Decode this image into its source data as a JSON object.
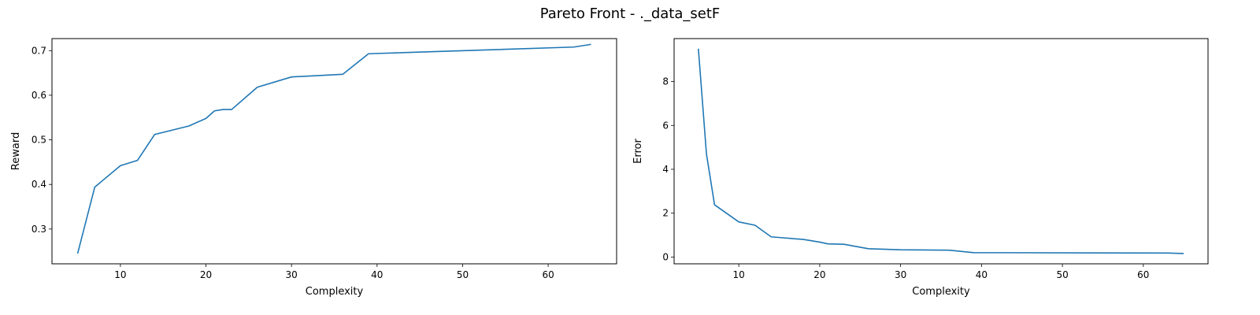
{
  "figure": {
    "title": "Pareto Front - ._data_setF"
  },
  "chart_data": [
    {
      "type": "line",
      "xlabel": "Complexity",
      "ylabel": "Reward",
      "xlim": [
        2,
        68
      ],
      "ylim": [
        0.222,
        0.727
      ],
      "xticks": [
        10,
        20,
        30,
        40,
        50,
        60
      ],
      "yticks": [
        0.3,
        0.4,
        0.5,
        0.6,
        0.7
      ],
      "ytick_labels": [
        "0.3",
        "0.4",
        "0.5",
        "0.6",
        "0.7"
      ],
      "grid": false,
      "color": "#1f77b4",
      "series": [
        {
          "x": [
            5,
            7,
            10,
            12,
            14,
            18,
            20,
            21,
            22,
            23,
            26,
            30,
            36,
            39,
            63,
            65
          ],
          "values": [
            0.245,
            0.394,
            0.442,
            0.454,
            0.512,
            0.531,
            0.548,
            0.565,
            0.568,
            0.568,
            0.618,
            0.641,
            0.647,
            0.693,
            0.708,
            0.714
          ]
        }
      ]
    },
    {
      "type": "line",
      "xlabel": "Complexity",
      "ylabel": "Error",
      "xlim": [
        2,
        68
      ],
      "ylim": [
        -0.31,
        9.96
      ],
      "xticks": [
        10,
        20,
        30,
        40,
        50,
        60
      ],
      "yticks": [
        0,
        2,
        4,
        6,
        8
      ],
      "ytick_labels": [
        "0",
        "2",
        "4",
        "6",
        "8"
      ],
      "grid": false,
      "color": "#1f77b4",
      "series": [
        {
          "x": [
            5,
            6,
            7,
            10,
            12,
            14,
            18,
            20,
            21,
            23,
            26,
            30,
            36,
            39,
            63,
            65
          ],
          "values": [
            9.5,
            4.7,
            2.38,
            1.6,
            1.45,
            0.92,
            0.8,
            0.68,
            0.6,
            0.58,
            0.38,
            0.33,
            0.31,
            0.2,
            0.18,
            0.16
          ]
        }
      ]
    }
  ]
}
